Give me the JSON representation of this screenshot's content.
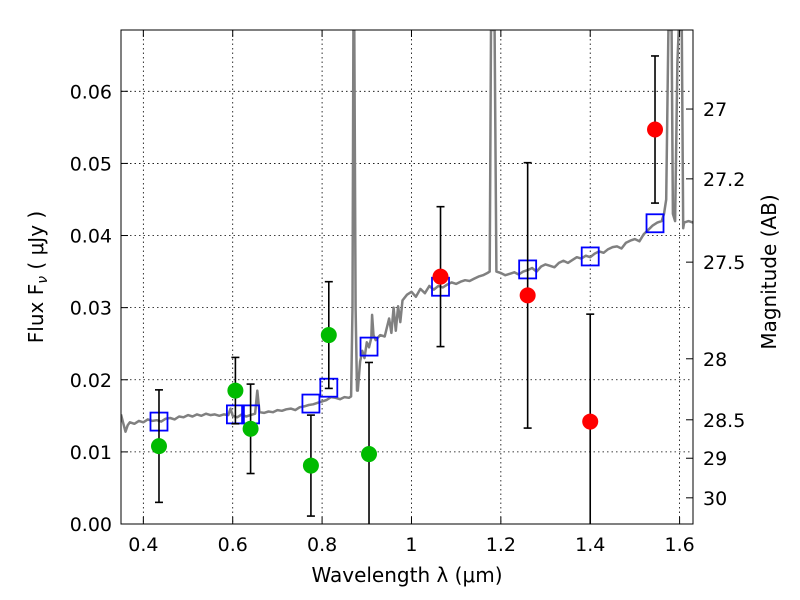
{
  "chart_data": {
    "type": "scatter",
    "xlabel": "Wavelength  λ (μm)",
    "ylabel": "Flux  F",
    "ylabel_sub": "ν",
    "ylabel_unit": "  ( μJy )",
    "y2label": "Magnitude (AB)",
    "xlim": [
      0.35,
      1.63
    ],
    "ylim": [
      0.0,
      0.0685
    ],
    "grid": true,
    "x_ticks": [
      {
        "value": 0.4,
        "label": "0.4"
      },
      {
        "value": 0.6,
        "label": "0.6"
      },
      {
        "value": 0.8,
        "label": "0.8"
      },
      {
        "value": 1.0,
        "label": "1"
      },
      {
        "value": 1.2,
        "label": "1.2"
      },
      {
        "value": 1.4,
        "label": "1.4"
      },
      {
        "value": 1.6,
        "label": "1.6"
      }
    ],
    "y_ticks": [
      {
        "value": 0.0,
        "label": "0.00"
      },
      {
        "value": 0.01,
        "label": "0.01"
      },
      {
        "value": 0.02,
        "label": "0.02"
      },
      {
        "value": 0.03,
        "label": "0.03"
      },
      {
        "value": 0.04,
        "label": "0.04"
      },
      {
        "value": 0.05,
        "label": "0.05"
      },
      {
        "value": 0.06,
        "label": "0.06"
      }
    ],
    "y2_ticks": [
      {
        "label": "27",
        "flux": 0.05754
      },
      {
        "label": "27.2",
        "flux": 0.04786
      },
      {
        "label": "27.5",
        "flux": 0.03631
      },
      {
        "label": "28",
        "flux": 0.02291
      },
      {
        "label": "28.5",
        "flux": 0.01445
      },
      {
        "label": "29",
        "flux": 0.00912
      },
      {
        "label": "30",
        "flux": 0.00363
      }
    ],
    "colors": {
      "green": "#00bb00",
      "red": "#ff0000",
      "blue": "#0000ff",
      "model": "#808080"
    },
    "green_points": [
      {
        "x": 0.435,
        "y": 0.0108,
        "err": 0.0078
      },
      {
        "x": 0.606,
        "y": 0.0185,
        "err": 0.0046
      },
      {
        "x": 0.64,
        "y": 0.0132,
        "err": 0.0062
      },
      {
        "x": 0.775,
        "y": 0.0081,
        "err": 0.007
      },
      {
        "x": 0.815,
        "y": 0.0262,
        "err": 0.0074
      },
      {
        "x": 0.905,
        "y": 0.0097,
        "err": 0.0127
      }
    ],
    "red_points": [
      {
        "x": 1.065,
        "y": 0.0343,
        "err": 0.0097
      },
      {
        "x": 1.26,
        "y": 0.0317,
        "err": 0.0184
      },
      {
        "x": 1.4,
        "y": 0.0142,
        "err": 0.0149
      },
      {
        "x": 1.545,
        "y": 0.0547,
        "err": 0.0102
      }
    ],
    "model_points": [
      {
        "x": 0.435,
        "y": 0.0142
      },
      {
        "x": 0.606,
        "y": 0.0152
      },
      {
        "x": 0.64,
        "y": 0.0152
      },
      {
        "x": 0.775,
        "y": 0.0167
      },
      {
        "x": 0.815,
        "y": 0.0189
      },
      {
        "x": 0.905,
        "y": 0.0246
      },
      {
        "x": 1.065,
        "y": 0.0329
      },
      {
        "x": 1.26,
        "y": 0.0353
      },
      {
        "x": 1.4,
        "y": 0.0371
      },
      {
        "x": 1.545,
        "y": 0.0417
      }
    ],
    "model_spectrum": [
      [
        0.35,
        0.0152
      ],
      [
        0.355,
        0.014
      ],
      [
        0.36,
        0.0128
      ],
      [
        0.365,
        0.0137
      ],
      [
        0.37,
        0.0141
      ],
      [
        0.38,
        0.0139
      ],
      [
        0.39,
        0.0143
      ],
      [
        0.4,
        0.0141
      ],
      [
        0.41,
        0.0145
      ],
      [
        0.42,
        0.0143
      ],
      [
        0.43,
        0.0144
      ],
      [
        0.44,
        0.0142
      ],
      [
        0.45,
        0.0146
      ],
      [
        0.46,
        0.0147
      ],
      [
        0.47,
        0.0145
      ],
      [
        0.48,
        0.0149
      ],
      [
        0.49,
        0.0148
      ],
      [
        0.5,
        0.0151
      ],
      [
        0.51,
        0.0149
      ],
      [
        0.52,
        0.0152
      ],
      [
        0.53,
        0.015
      ],
      [
        0.54,
        0.0153
      ],
      [
        0.55,
        0.0151
      ],
      [
        0.56,
        0.0152
      ],
      [
        0.57,
        0.015
      ],
      [
        0.58,
        0.0152
      ],
      [
        0.59,
        0.0151
      ],
      [
        0.595,
        0.016
      ],
      [
        0.6,
        0.015
      ],
      [
        0.61,
        0.0148
      ],
      [
        0.62,
        0.0152
      ],
      [
        0.63,
        0.0149
      ],
      [
        0.64,
        0.0151
      ],
      [
        0.65,
        0.0153
      ],
      [
        0.655,
        0.0185
      ],
      [
        0.66,
        0.0155
      ],
      [
        0.67,
        0.0154
      ],
      [
        0.68,
        0.0156
      ],
      [
        0.69,
        0.0155
      ],
      [
        0.7,
        0.0158
      ],
      [
        0.71,
        0.0157
      ],
      [
        0.72,
        0.0159
      ],
      [
        0.73,
        0.016
      ],
      [
        0.74,
        0.0158
      ],
      [
        0.75,
        0.0162
      ],
      [
        0.76,
        0.0163
      ],
      [
        0.77,
        0.0165
      ],
      [
        0.78,
        0.0166
      ],
      [
        0.79,
        0.0168
      ],
      [
        0.8,
        0.017
      ],
      [
        0.81,
        0.0172
      ],
      [
        0.82,
        0.0176
      ],
      [
        0.83,
        0.0175
      ],
      [
        0.84,
        0.0173
      ],
      [
        0.85,
        0.0176
      ],
      [
        0.86,
        0.0175
      ],
      [
        0.865,
        0.0177
      ],
      [
        0.868,
        0.03
      ],
      [
        0.87,
        0.0685
      ],
      [
        0.872,
        0.0685
      ],
      [
        0.875,
        0.03
      ],
      [
        0.878,
        0.0185
      ],
      [
        0.88,
        0.0185
      ],
      [
        0.885,
        0.0225
      ],
      [
        0.89,
        0.024
      ],
      [
        0.895,
        0.023
      ],
      [
        0.9,
        0.0252
      ],
      [
        0.905,
        0.0245
      ],
      [
        0.91,
        0.0258
      ],
      [
        0.912,
        0.029
      ],
      [
        0.915,
        0.0262
      ],
      [
        0.92,
        0.0255
      ],
      [
        0.93,
        0.0262
      ],
      [
        0.94,
        0.026
      ],
      [
        0.95,
        0.0285
      ],
      [
        0.955,
        0.0265
      ],
      [
        0.96,
        0.03
      ],
      [
        0.965,
        0.0268
      ],
      [
        0.97,
        0.0302
      ],
      [
        0.975,
        0.028
      ],
      [
        0.98,
        0.031
      ],
      [
        0.99,
        0.0318
      ],
      [
        1.0,
        0.0322
      ],
      [
        1.01,
        0.0315
      ],
      [
        1.02,
        0.0326
      ],
      [
        1.03,
        0.032
      ],
      [
        1.04,
        0.033
      ],
      [
        1.05,
        0.0325
      ],
      [
        1.06,
        0.033
      ],
      [
        1.07,
        0.0328
      ],
      [
        1.08,
        0.0332
      ],
      [
        1.09,
        0.0335
      ],
      [
        1.1,
        0.0333
      ],
      [
        1.11,
        0.0336
      ],
      [
        1.12,
        0.0338
      ],
      [
        1.13,
        0.0337
      ],
      [
        1.14,
        0.034
      ],
      [
        1.15,
        0.0343
      ],
      [
        1.16,
        0.0345
      ],
      [
        1.17,
        0.0348
      ],
      [
        1.175,
        0.035
      ],
      [
        1.178,
        0.0685
      ],
      [
        1.186,
        0.0685
      ],
      [
        1.19,
        0.035
      ],
      [
        1.2,
        0.0348
      ],
      [
        1.21,
        0.0345
      ],
      [
        1.22,
        0.0347
      ],
      [
        1.23,
        0.0349
      ],
      [
        1.24,
        0.0346
      ],
      [
        1.25,
        0.035
      ],
      [
        1.26,
        0.0352
      ],
      [
        1.27,
        0.0355
      ],
      [
        1.28,
        0.035
      ],
      [
        1.29,
        0.0357
      ],
      [
        1.3,
        0.036
      ],
      [
        1.31,
        0.0358
      ],
      [
        1.32,
        0.0356
      ],
      [
        1.33,
        0.0362
      ],
      [
        1.34,
        0.0365
      ],
      [
        1.35,
        0.0362
      ],
      [
        1.36,
        0.0366
      ],
      [
        1.37,
        0.037
      ],
      [
        1.38,
        0.0368
      ],
      [
        1.39,
        0.0372
      ],
      [
        1.4,
        0.037
      ],
      [
        1.41,
        0.0375
      ],
      [
        1.42,
        0.0378
      ],
      [
        1.43,
        0.0376
      ],
      [
        1.44,
        0.0381
      ],
      [
        1.45,
        0.0384
      ],
      [
        1.46,
        0.0385
      ],
      [
        1.47,
        0.0382
      ],
      [
        1.48,
        0.039
      ],
      [
        1.49,
        0.0393
      ],
      [
        1.5,
        0.0395
      ],
      [
        1.51,
        0.0392
      ],
      [
        1.52,
        0.0402
      ],
      [
        1.53,
        0.0408
      ],
      [
        1.54,
        0.0414
      ],
      [
        1.55,
        0.0418
      ],
      [
        1.56,
        0.042
      ],
      [
        1.565,
        0.043
      ],
      [
        1.57,
        0.045
      ],
      [
        1.575,
        0.0685
      ],
      [
        1.582,
        0.0685
      ],
      [
        1.585,
        0.043
      ],
      [
        1.59,
        0.042
      ],
      [
        1.595,
        0.064
      ],
      [
        1.598,
        0.0685
      ],
      [
        1.605,
        0.0685
      ],
      [
        1.608,
        0.041
      ],
      [
        1.61,
        0.0418
      ],
      [
        1.62,
        0.042
      ],
      [
        1.63,
        0.0418
      ]
    ]
  }
}
